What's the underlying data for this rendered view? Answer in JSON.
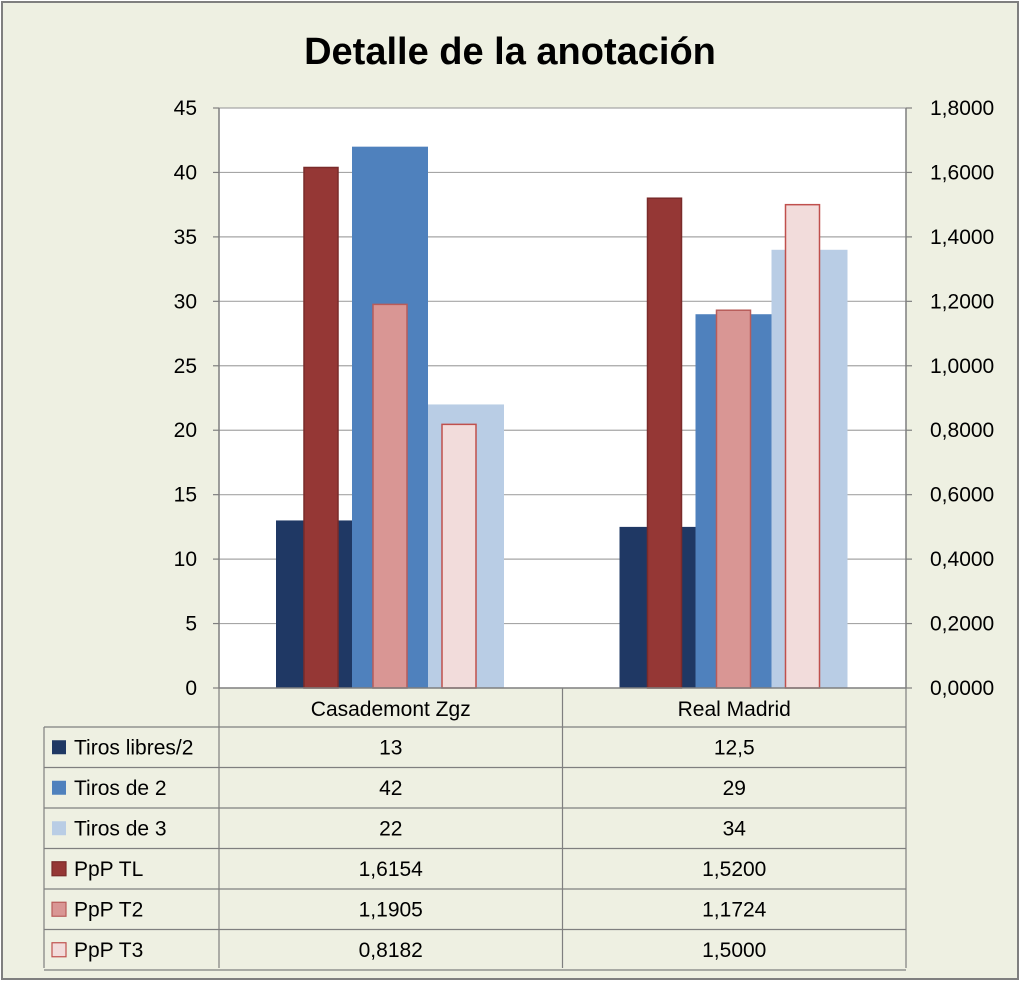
{
  "chart_data": {
    "type": "bar",
    "title": "Detalle de la anotación",
    "categories": [
      "Casademont Zgz",
      "Real Madrid"
    ],
    "y_left": {
      "ylim": [
        0,
        45
      ],
      "ticks": [
        "0",
        "5",
        "10",
        "15",
        "20",
        "25",
        "30",
        "35",
        "40",
        "45"
      ]
    },
    "y_right": {
      "ylim": [
        0,
        1.8
      ],
      "ticks": [
        "0,0000",
        "0,2000",
        "0,4000",
        "0,6000",
        "0,8000",
        "1,0000",
        "1,2000",
        "1,4000",
        "1,6000",
        "1,8000"
      ]
    },
    "background_series": [
      {
        "name": "Tiros libres/2",
        "values": [
          13,
          12.5
        ],
        "labels": [
          "13",
          "12,5"
        ],
        "axis": "left",
        "color": "#1f3864"
      },
      {
        "name": "Tiros de 2",
        "values": [
          42,
          29
        ],
        "labels": [
          "42",
          "29"
        ],
        "axis": "left",
        "color": "#4f81bd"
      },
      {
        "name": "Tiros de 3",
        "values": [
          22,
          34
        ],
        "labels": [
          "22",
          "34"
        ],
        "axis": "left",
        "color": "#b9cde5"
      }
    ],
    "foreground_series": [
      {
        "name": "PpP TL",
        "values": [
          1.6154,
          1.52
        ],
        "labels": [
          "1,6154",
          "1,5200"
        ],
        "axis": "right",
        "color": "#953735",
        "border": "#7a2b2a"
      },
      {
        "name": "PpP T2",
        "values": [
          1.1905,
          1.1724
        ],
        "labels": [
          "1,1905",
          "1,1724"
        ],
        "axis": "right",
        "color": "#d99694",
        "border": "#b85c5a"
      },
      {
        "name": "PpP T3",
        "values": [
          0.8182,
          1.5
        ],
        "labels": [
          "0,8182",
          "1,5000"
        ],
        "axis": "right",
        "color": "#f2dcdb",
        "border": "#c0504d"
      }
    ],
    "table_rows": [
      "Tiros libres/2",
      "Tiros de 2",
      "Tiros de 3",
      "PpP TL",
      "PpP T2",
      "PpP T3"
    ],
    "grid": true,
    "legend": "data-table"
  }
}
